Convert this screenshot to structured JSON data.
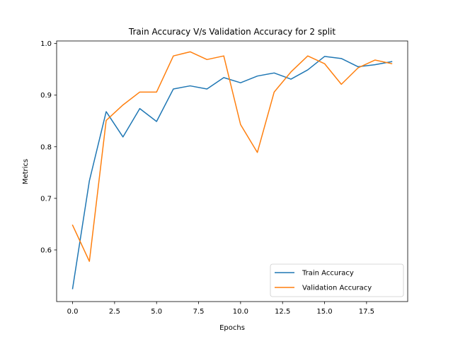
{
  "chart_data": {
    "type": "line",
    "title": "Train Accuracy V/s Validation Accuracy for 2 split",
    "xlabel": "Epochs",
    "ylabel": "Metrics",
    "x": [
      0,
      1,
      2,
      3,
      4,
      5,
      6,
      7,
      8,
      9,
      10,
      11,
      12,
      13,
      14,
      15,
      16,
      17,
      18,
      19
    ],
    "xlim": [
      -0.95,
      19.95
    ],
    "ylim": [
      0.5,
      1.005
    ],
    "xticks": [
      0.0,
      2.5,
      5.0,
      7.5,
      10.0,
      12.5,
      15.0,
      17.5
    ],
    "xtick_labels": [
      "0.0",
      "2.5",
      "5.0",
      "7.5",
      "10.0",
      "12.5",
      "15.0",
      "17.5"
    ],
    "yticks": [
      0.6,
      0.7,
      0.8,
      0.9,
      1.0
    ],
    "ytick_labels": [
      "0.6",
      "0.7",
      "0.8",
      "0.9",
      "1.0"
    ],
    "grid": false,
    "legend_position": "lower-right",
    "series": [
      {
        "name": "Train Accuracy",
        "color": "#1f77b4",
        "values": [
          0.525,
          0.734,
          0.868,
          0.819,
          0.874,
          0.849,
          0.912,
          0.918,
          0.912,
          0.934,
          0.924,
          0.937,
          0.943,
          0.931,
          0.949,
          0.975,
          0.971,
          0.955,
          0.959,
          0.965
        ]
      },
      {
        "name": "Validation Accuracy",
        "color": "#ff7f0e",
        "values": [
          0.648,
          0.578,
          0.851,
          0.881,
          0.906,
          0.906,
          0.976,
          0.984,
          0.969,
          0.976,
          0.843,
          0.789,
          0.906,
          0.945,
          0.976,
          0.961,
          0.921,
          0.953,
          0.968,
          0.961
        ]
      }
    ]
  }
}
